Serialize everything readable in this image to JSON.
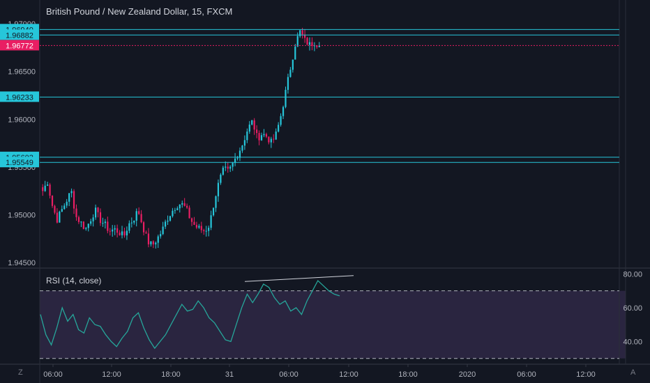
{
  "window_title": "British Pound / New Zealand Dollar, 15, FXCM",
  "colors": {
    "background": "#131722",
    "up": "#26c6da",
    "down": "#e91e63",
    "level_line": "#26c6da",
    "price_label_bg": "#26c6da",
    "last_price_bg": "#e91e63",
    "rsi_line": "#26a69a",
    "rsi_band": "#2a2540",
    "trendline": "#d1d4dc"
  },
  "corner_buttons": {
    "left": "Z",
    "right": "A"
  },
  "chart_data": [
    {
      "type": "candlestick",
      "symbol": "GBPNZD",
      "interval": "15",
      "y_ticks": [
        "1.97000",
        "1.96500",
        "1.96000",
        "1.95500",
        "1.95000",
        "1.94500"
      ],
      "ylim": [
        1.9445,
        1.9703
      ],
      "x_ticks": [
        "06:00",
        "12:00",
        "18:00",
        "31",
        "06:00",
        "12:00",
        "18:00",
        "2020",
        "06:00",
        "12:00"
      ],
      "levels": [
        1.9694,
        1.96882,
        1.96233,
        1.95603,
        1.95549
      ],
      "level_labels": [
        "1.96940",
        "1.96882",
        "1.96233",
        "1.95603",
        "1.95549"
      ],
      "last_price": 1.96772,
      "last_price_label": "1.96772",
      "close_path": [
        1.9525,
        1.9535,
        1.951,
        1.9495,
        1.9505,
        1.9515,
        1.9525,
        1.9498,
        1.9492,
        1.9485,
        1.9495,
        1.9505,
        1.9495,
        1.949,
        1.9483,
        1.9485,
        1.9482,
        1.9477,
        1.949,
        1.9495,
        1.9505,
        1.9488,
        1.9472,
        1.9468,
        1.9475,
        1.9483,
        1.9495,
        1.9503,
        1.951,
        1.9512,
        1.9507,
        1.9495,
        1.9488,
        1.9485,
        1.9483,
        1.949,
        1.9515,
        1.9535,
        1.9548,
        1.9545,
        1.9555,
        1.9565,
        1.9575,
        1.959,
        1.9598,
        1.958,
        1.9585,
        1.9582,
        1.9575,
        1.9585,
        1.9605,
        1.963,
        1.9655,
        1.968,
        1.9692,
        1.9682,
        1.9678,
        1.9681,
        1.9677
      ],
      "count": 116
    },
    {
      "type": "line",
      "title": "RSI (14, close)",
      "y_ticks": [
        "80.00",
        "60.00",
        "40.00"
      ],
      "ylim": [
        27,
        83
      ],
      "bands": [
        70,
        30
      ],
      "values": [
        56,
        44,
        38,
        48,
        60,
        52,
        56,
        47,
        45,
        54,
        50,
        49,
        44,
        40,
        37,
        42,
        46,
        54,
        57,
        48,
        41,
        36,
        40,
        44,
        50,
        56,
        62,
        58,
        59,
        64,
        60,
        54,
        51,
        46,
        41,
        40,
        50,
        60,
        68,
        63,
        68,
        74,
        72,
        66,
        62,
        64,
        58,
        60,
        56,
        64,
        70,
        76,
        73,
        70,
        68,
        67
      ],
      "trendline": [
        [
          66.5,
          75.5
        ],
        [
          118.5,
          79.0
        ]
      ]
    }
  ]
}
